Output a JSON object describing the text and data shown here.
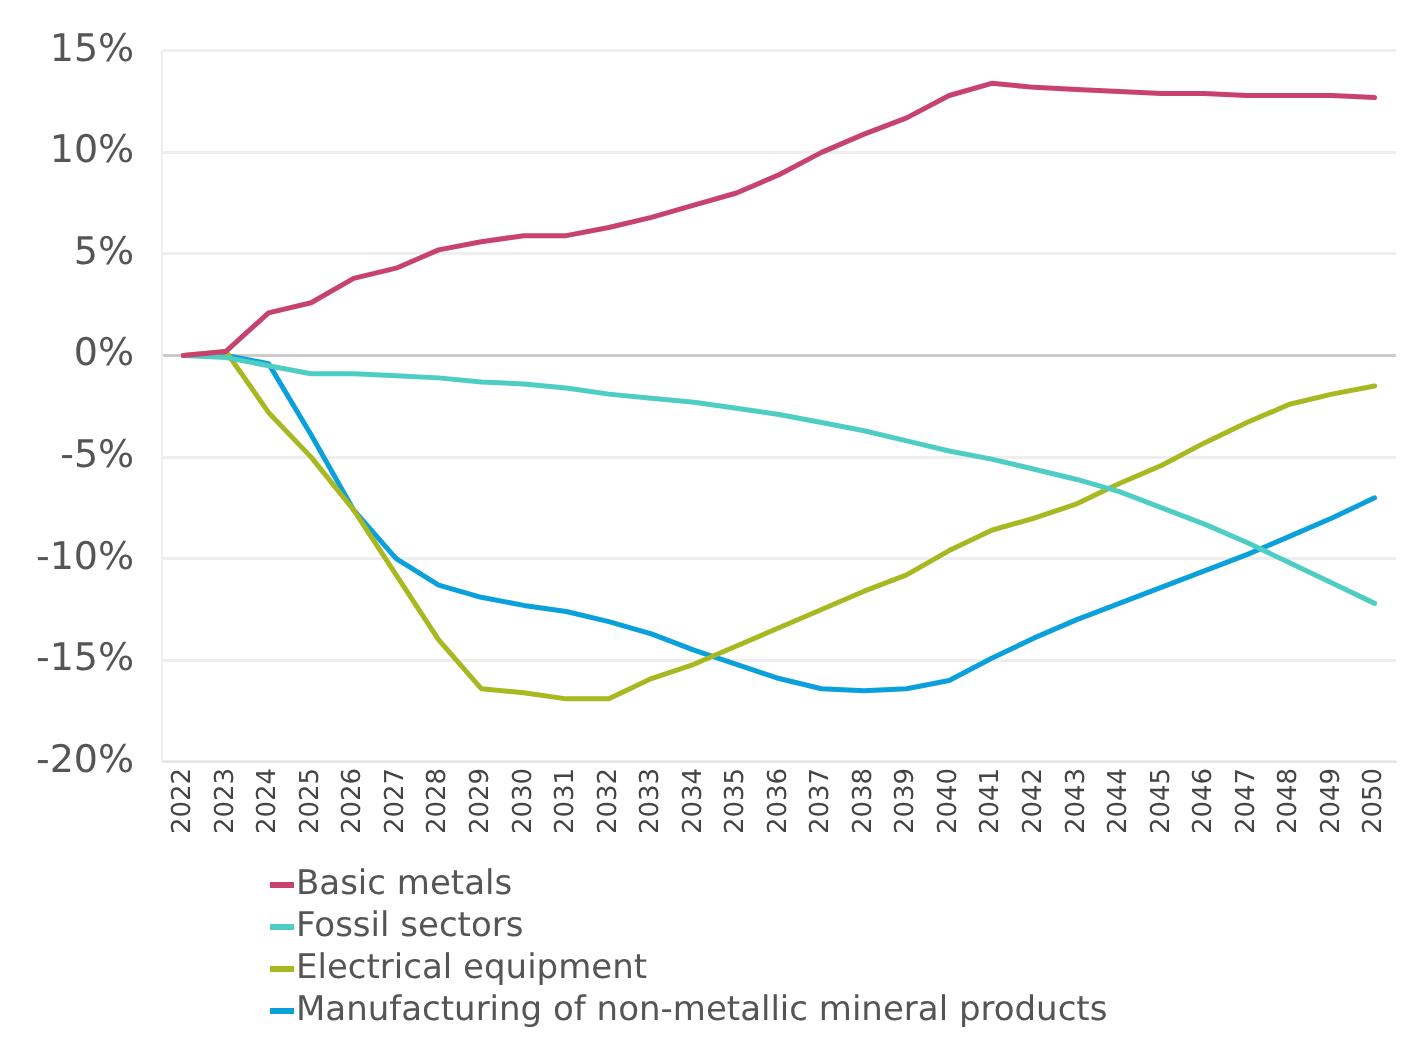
{
  "chart_data": {
    "type": "line",
    "categories": [
      "2022",
      "2023",
      "2024",
      "2025",
      "2026",
      "2027",
      "2028",
      "2029",
      "2030",
      "2031",
      "2032",
      "2033",
      "2034",
      "2035",
      "2036",
      "2037",
      "2038",
      "2039",
      "2040",
      "2041",
      "2042",
      "2043",
      "2044",
      "2045",
      "2046",
      "2047",
      "2048",
      "2049",
      "2050"
    ],
    "series": [
      {
        "name": "Basic metals",
        "color": "#c7426e",
        "values": [
          0,
          0.2,
          2.1,
          2.6,
          3.8,
          4.3,
          5.2,
          5.6,
          5.9,
          5.9,
          6.3,
          6.8,
          7.4,
          8.0,
          8.9,
          10.0,
          10.9,
          11.7,
          12.8,
          13.4,
          13.2,
          13.1,
          13.0,
          12.9,
          12.9,
          12.8,
          12.8,
          12.8,
          12.7
        ]
      },
      {
        "name": "Fossil sectors",
        "color": "#4ecdc4",
        "values": [
          0,
          -0.1,
          -0.5,
          -0.9,
          -0.9,
          -1.0,
          -1.1,
          -1.3,
          -1.4,
          -1.6,
          -1.9,
          -2.1,
          -2.3,
          -2.6,
          -2.9,
          -3.3,
          -3.7,
          -4.2,
          -4.7,
          -5.1,
          -5.6,
          -6.1,
          -6.7,
          -7.5,
          -8.3,
          -9.2,
          -10.2,
          -11.2,
          -12.2
        ]
      },
      {
        "name": "Electrical equipment",
        "color": "#a8b820",
        "values": [
          0,
          0.2,
          -2.8,
          -5.0,
          -7.6,
          -10.8,
          -14.0,
          -16.4,
          -16.6,
          -16.9,
          -16.9,
          -15.9,
          -15.2,
          -14.3,
          -13.4,
          -12.5,
          -11.6,
          -10.8,
          -9.6,
          -8.6,
          -8.0,
          -7.3,
          -6.3,
          -5.4,
          -4.3,
          -3.3,
          -2.4,
          -1.9,
          -1.5
        ]
      },
      {
        "name": "Manufacturing of non-metallic mineral products",
        "color": "#0aa0dc",
        "values": [
          0,
          0,
          -0.4,
          -3.9,
          -7.6,
          -10.0,
          -11.3,
          -11.9,
          -12.3,
          -12.6,
          -13.1,
          -13.7,
          -14.5,
          -15.2,
          -15.9,
          -16.4,
          -16.5,
          -16.4,
          -16.0,
          -14.9,
          -13.9,
          -13.0,
          -12.2,
          -11.4,
          -10.6,
          -9.8,
          -8.9,
          -8.0,
          -7.0
        ]
      }
    ],
    "ylim": [
      -20,
      15
    ],
    "yticks": [
      {
        "value": -20,
        "label": "-20%"
      },
      {
        "value": -15,
        "label": "-15%"
      },
      {
        "value": -10,
        "label": "-10%"
      },
      {
        "value": -5,
        "label": "-5%"
      },
      {
        "value": 0,
        "label": "0%"
      },
      {
        "value": 5,
        "label": "5%"
      },
      {
        "value": 10,
        "label": "10%"
      },
      {
        "value": 15,
        "label": "15%"
      }
    ],
    "grid": "y",
    "legend": "bottom",
    "marker": "none",
    "line_style": "solid"
  }
}
